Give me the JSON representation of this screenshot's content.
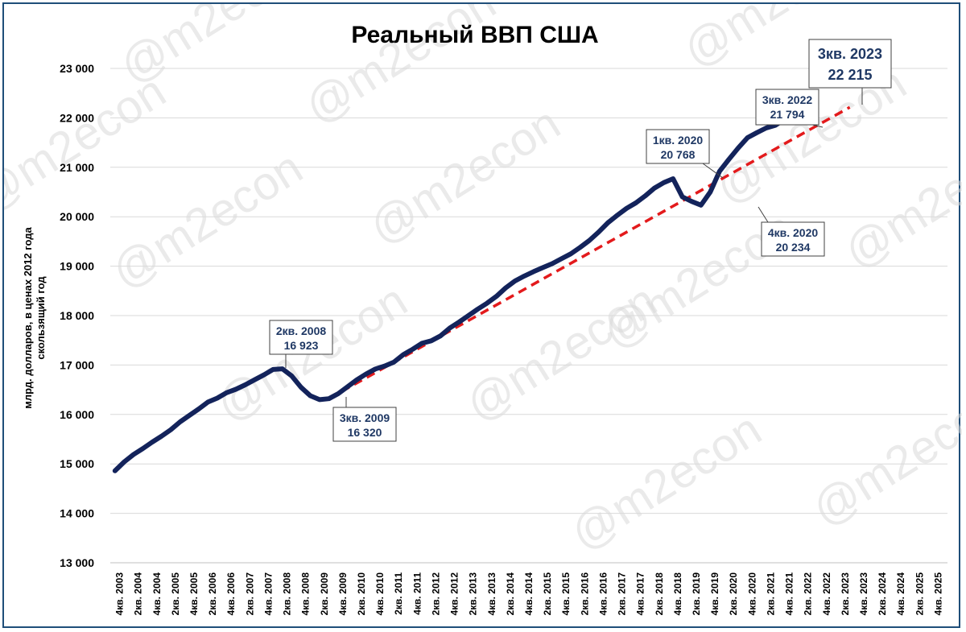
{
  "watermark": "@m2econ",
  "chart_data": {
    "type": "line",
    "title": "Реальный ВВП США",
    "ylabel_line1": "млрд. долларов, в ценах 2012 года",
    "ylabel_line2": "скользящий год",
    "ylim": [
      13000,
      23000
    ],
    "y_ticks": [
      "13 000",
      "14 000",
      "15 000",
      "16 000",
      "17 000",
      "18 000",
      "19 000",
      "20 000",
      "21 000",
      "22 000",
      "23 000"
    ],
    "x_ticks": [
      "4кв. 2003",
      "2кв. 2004",
      "4кв. 2004",
      "2кв. 2005",
      "4кв. 2005",
      "2кв. 2006",
      "4кв. 2006",
      "2кв. 2007",
      "4кв. 2007",
      "2кв. 2008",
      "4кв. 2008",
      "2кв. 2009",
      "4кв. 2009",
      "2кв. 2010",
      "4кв. 2010",
      "2кв. 2011",
      "4кв. 2011",
      "2кв. 2012",
      "4кв. 2012",
      "2кв. 2013",
      "4кв. 2013",
      "2кв. 2014",
      "4кв. 2014",
      "2кв. 2015",
      "4кв. 2015",
      "2кв. 2016",
      "4кв. 2016",
      "2кв. 2017",
      "4кв. 2017",
      "2кв. 2018",
      "4кв. 2018",
      "2кв. 2019",
      "4кв. 2019",
      "2кв. 2020",
      "4кв. 2020",
      "2кв. 2021",
      "4кв. 2021",
      "2кв. 2022",
      "4кв. 2022",
      "2кв. 2023",
      "4кв. 2023",
      "2кв. 2024",
      "4кв. 2024",
      "2кв. 2025",
      "4кв. 2025"
    ],
    "grid": true,
    "series": [
      {
        "color": "#13235b",
        "style": "solid",
        "start_label": "4кв. 2003",
        "values": [
          14860,
          15040,
          15190,
          15310,
          15440,
          15560,
          15690,
          15850,
          15980,
          16110,
          16250,
          16330,
          16440,
          16510,
          16600,
          16700,
          16800,
          16910,
          16923,
          16780,
          16550,
          16380,
          16300,
          16320,
          16420,
          16560,
          16700,
          16820,
          16920,
          16980,
          17060,
          17210,
          17320,
          17440,
          17490,
          17590,
          17750,
          17870,
          18000,
          18130,
          18250,
          18390,
          18560,
          18700,
          18800,
          18890,
          18970,
          19050,
          19150,
          19250,
          19380,
          19520,
          19690,
          19880,
          20030,
          20170,
          20280,
          20420,
          20580,
          20690,
          20768,
          20400,
          20310,
          20234,
          20500,
          20920,
          21160,
          21390,
          21600,
          21700,
          21794,
          21850,
          21970,
          22100,
          22215
        ]
      },
      {
        "color": "#e31a1c",
        "style": "dashed",
        "start_label": "3кв. 2009",
        "end_label": "3кв. 2023",
        "values": [
          16320,
          22215
        ]
      }
    ],
    "annotations": [
      {
        "line1": "2кв. 2008",
        "line2": "16 923"
      },
      {
        "line1": "3кв. 2009",
        "line2": "16 320"
      },
      {
        "line1": "1кв. 2020",
        "line2": "20 768"
      },
      {
        "line1": "4кв. 2020",
        "line2": "20 234"
      },
      {
        "line1": "3кв. 2022",
        "line2": "21 794"
      },
      {
        "line1": "3кв. 2023",
        "line2": "22 215"
      }
    ]
  }
}
